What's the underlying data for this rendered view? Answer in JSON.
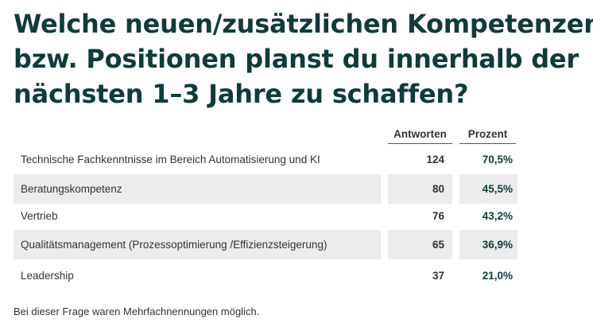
{
  "title_lines": [
    "Welche neuen/zusätzlichen Kompetenzen",
    "bzw. Positionen planst du innerhalb der",
    "nächsten 1–3 Jahre zu schaffen?"
  ],
  "table": {
    "headers": {
      "answers": "Antworten",
      "percent": "Prozent"
    },
    "rows": [
      {
        "label": "Technische Fachkenntnisse im Bereich Automatisierung und KI",
        "count": "124",
        "percent": "70,5%"
      },
      {
        "label": "Beratungskompetenz",
        "count": "80",
        "percent": "45,5%"
      },
      {
        "label": "Vertrieb",
        "count": "76",
        "percent": "43,2%"
      },
      {
        "label": "Qualitätsmanagement (Prozessoptimierung /Effizienzsteigerung)",
        "count": "65",
        "percent": "36,9%"
      },
      {
        "label": "Leadership",
        "count": "37",
        "percent": "21,0%"
      }
    ]
  },
  "footnote": "Bei dieser Frage waren Mehrfachnennungen möglich.",
  "colors": {
    "title": "#0f3c3a",
    "row_shade": "#ececec",
    "text": "#333333"
  }
}
